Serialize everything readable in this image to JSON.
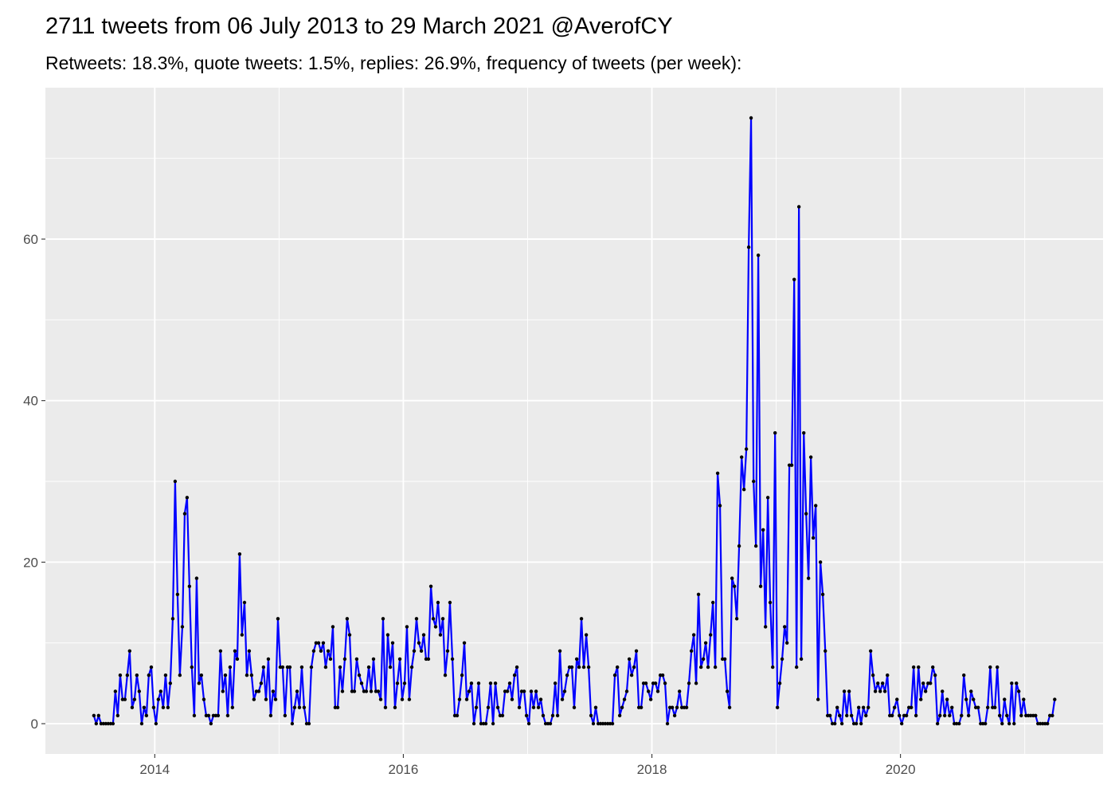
{
  "chart_data": {
    "type": "line",
    "title": "2711 tweets from 06 July 2013 to 29 March 2021 @AverofCY",
    "subtitle": "Retweets: 18.3%, quote tweets: 1.5%, replies: 26.9%, frequency of tweets (per week):",
    "color": "#0000ff",
    "point_color": "#000000",
    "grid": true,
    "xlim": [
      2013.12,
      2021.63
    ],
    "ylim": [
      -3.75,
      78.75
    ],
    "xticks": [
      2014,
      2016,
      2018,
      2020
    ],
    "yticks": [
      0,
      20,
      40,
      60
    ],
    "x": [
      2013.51,
      2013.529,
      2013.548,
      2013.568,
      2013.587,
      2013.606,
      2013.625,
      2013.645,
      2013.664,
      2013.683,
      2013.702,
      2013.722,
      2013.741,
      2013.76,
      2013.779,
      2013.798,
      2013.818,
      2013.837,
      2013.856,
      2013.875,
      2013.895,
      2013.914,
      2013.933,
      2013.952,
      2013.972,
      2013.991,
      2014.01,
      2014.029,
      2014.048,
      2014.068,
      2014.087,
      2014.106,
      2014.125,
      2014.145,
      2014.164,
      2014.183,
      2014.202,
      2014.222,
      2014.241,
      2014.26,
      2014.279,
      2014.298,
      2014.318,
      2014.337,
      2014.356,
      2014.375,
      2014.395,
      2014.414,
      2014.433,
      2014.452,
      2014.472,
      2014.491,
      2014.51,
      2014.529,
      2014.548,
      2014.568,
      2014.587,
      2014.606,
      2014.625,
      2014.645,
      2014.664,
      2014.683,
      2014.702,
      2014.722,
      2014.741,
      2014.76,
      2014.779,
      2014.798,
      2014.818,
      2014.837,
      2014.856,
      2014.875,
      2014.895,
      2014.914,
      2014.933,
      2014.952,
      2014.972,
      2014.991,
      2015.01,
      2015.029,
      2015.048,
      2015.068,
      2015.087,
      2015.106,
      2015.125,
      2015.145,
      2015.164,
      2015.183,
      2015.202,
      2015.222,
      2015.241,
      2015.26,
      2015.279,
      2015.298,
      2015.318,
      2015.337,
      2015.356,
      2015.375,
      2015.395,
      2015.414,
      2015.433,
      2015.452,
      2015.472,
      2015.491,
      2015.51,
      2015.529,
      2015.548,
      2015.568,
      2015.587,
      2015.606,
      2015.625,
      2015.645,
      2015.664,
      2015.683,
      2015.702,
      2015.722,
      2015.741,
      2015.76,
      2015.779,
      2015.798,
      2015.818,
      2015.837,
      2015.856,
      2015.875,
      2015.895,
      2015.914,
      2015.933,
      2015.952,
      2015.972,
      2015.991,
      2016.01,
      2016.029,
      2016.048,
      2016.068,
      2016.087,
      2016.106,
      2016.125,
      2016.145,
      2016.164,
      2016.183,
      2016.202,
      2016.222,
      2016.241,
      2016.26,
      2016.279,
      2016.298,
      2016.318,
      2016.337,
      2016.356,
      2016.375,
      2016.395,
      2016.414,
      2016.433,
      2016.452,
      2016.472,
      2016.491,
      2016.51,
      2016.529,
      2016.548,
      2016.568,
      2016.587,
      2016.606,
      2016.625,
      2016.645,
      2016.664,
      2016.683,
      2016.702,
      2016.722,
      2016.741,
      2016.76,
      2016.779,
      2016.798,
      2016.818,
      2016.837,
      2016.856,
      2016.875,
      2016.895,
      2016.914,
      2016.933,
      2016.952,
      2016.972,
      2016.991,
      2017.01,
      2017.029,
      2017.048,
      2017.068,
      2017.087,
      2017.106,
      2017.125,
      2017.145,
      2017.164,
      2017.183,
      2017.202,
      2017.222,
      2017.241,
      2017.26,
      2017.279,
      2017.298,
      2017.318,
      2017.337,
      2017.356,
      2017.375,
      2017.395,
      2017.414,
      2017.433,
      2017.452,
      2017.472,
      2017.491,
      2017.51,
      2017.529,
      2017.548,
      2017.568,
      2017.587,
      2017.606,
      2017.625,
      2017.645,
      2017.664,
      2017.683,
      2017.702,
      2017.722,
      2017.741,
      2017.76,
      2017.779,
      2017.798,
      2017.818,
      2017.837,
      2017.856,
      2017.875,
      2017.895,
      2017.914,
      2017.933,
      2017.952,
      2017.972,
      2017.991,
      2018.01,
      2018.029,
      2018.048,
      2018.068,
      2018.087,
      2018.106,
      2018.125,
      2018.145,
      2018.164,
      2018.183,
      2018.202,
      2018.222,
      2018.241,
      2018.26,
      2018.279,
      2018.298,
      2018.318,
      2018.337,
      2018.356,
      2018.375,
      2018.395,
      2018.414,
      2018.433,
      2018.452,
      2018.472,
      2018.491,
      2018.51,
      2018.529,
      2018.548,
      2018.568,
      2018.587,
      2018.606,
      2018.625,
      2018.645,
      2018.664,
      2018.683,
      2018.702,
      2018.722,
      2018.741,
      2018.76,
      2018.779,
      2018.798,
      2018.818,
      2018.837,
      2018.856,
      2018.875,
      2018.895,
      2018.914,
      2018.933,
      2018.952,
      2018.972,
      2018.991,
      2019.01,
      2019.029,
      2019.048,
      2019.068,
      2019.087,
      2019.106,
      2019.125,
      2019.145,
      2019.164,
      2019.183,
      2019.202,
      2019.222,
      2019.241,
      2019.26,
      2019.279,
      2019.298,
      2019.318,
      2019.337,
      2019.356,
      2019.375,
      2019.395,
      2019.414,
      2019.433,
      2019.452,
      2019.472,
      2019.491,
      2019.51,
      2019.529,
      2019.548,
      2019.568,
      2019.587,
      2019.606,
      2019.625,
      2019.645,
      2019.664,
      2019.683,
      2019.702,
      2019.722,
      2019.741,
      2019.76,
      2019.779,
      2019.798,
      2019.818,
      2019.837,
      2019.856,
      2019.875,
      2019.895,
      2019.914,
      2019.933,
      2019.952,
      2019.972,
      2019.991,
      2020.01,
      2020.029,
      2020.048,
      2020.068,
      2020.087,
      2020.106,
      2020.125,
      2020.145,
      2020.164,
      2020.183,
      2020.202,
      2020.222,
      2020.241,
      2020.26,
      2020.279,
      2020.298,
      2020.318,
      2020.337,
      2020.356,
      2020.375,
      2020.395,
      2020.414,
      2020.433,
      2020.452,
      2020.472,
      2020.491,
      2020.51,
      2020.529,
      2020.548,
      2020.568,
      2020.587,
      2020.606,
      2020.625,
      2020.645,
      2020.664,
      2020.683,
      2020.702,
      2020.722,
      2020.741,
      2020.76,
      2020.779,
      2020.798,
      2020.818,
      2020.837,
      2020.856,
      2020.875,
      2020.895,
      2020.914,
      2020.933,
      2020.952,
      2020.972,
      2020.991,
      2021.01,
      2021.029,
      2021.048,
      2021.068,
      2021.087,
      2021.106,
      2021.125,
      2021.145,
      2021.164,
      2021.183,
      2021.202,
      2021.222,
      2021.241
    ],
    "values": [
      1,
      0,
      1,
      0,
      0,
      0,
      0,
      0,
      0,
      4,
      1,
      6,
      3,
      3,
      6,
      9,
      2,
      3,
      6,
      4,
      0,
      2,
      1,
      6,
      7,
      2,
      0,
      3,
      4,
      2,
      6,
      2,
      5,
      13,
      30,
      16,
      6,
      12,
      26,
      28,
      17,
      7,
      1,
      18,
      5,
      6,
      3,
      1,
      1,
      0,
      1,
      1,
      1,
      9,
      4,
      6,
      1,
      7,
      2,
      9,
      8,
      21,
      11,
      15,
      6,
      9,
      6,
      3,
      4,
      4,
      5,
      7,
      3,
      8,
      1,
      4,
      3,
      13,
      7,
      7,
      1,
      7,
      7,
      0,
      2,
      4,
      2,
      7,
      2,
      0,
      0,
      7,
      9,
      10,
      10,
      9,
      10,
      7,
      9,
      8,
      12,
      2,
      2,
      7,
      4,
      8,
      13,
      11,
      4,
      4,
      8,
      6,
      5,
      4,
      4,
      7,
      4,
      8,
      4,
      4,
      3,
      13,
      2,
      11,
      7,
      10,
      2,
      5,
      8,
      3,
      5,
      12,
      3,
      7,
      9,
      13,
      10,
      9,
      11,
      8,
      8,
      17,
      13,
      12,
      15,
      11,
      13,
      6,
      9,
      15,
      8,
      1,
      1,
      3,
      6,
      10,
      3,
      4,
      5,
      0,
      2,
      5,
      0,
      0,
      0,
      2,
      5,
      0,
      5,
      2,
      1,
      1,
      4,
      4,
      5,
      3,
      6,
      7,
      2,
      4,
      4,
      1,
      0,
      4,
      2,
      4,
      2,
      3,
      1,
      0,
      0,
      0,
      1,
      5,
      1,
      9,
      3,
      4,
      6,
      7,
      7,
      2,
      8,
      7,
      13,
      7,
      11,
      7,
      1,
      0,
      2,
      0,
      0,
      0,
      0,
      0,
      0,
      0,
      6,
      7,
      1,
      2,
      3,
      4,
      8,
      6,
      7,
      9,
      2,
      2,
      5,
      5,
      4,
      3,
      5,
      5,
      4,
      6,
      6,
      5,
      0,
      2,
      2,
      1,
      2,
      4,
      2,
      2,
      2,
      5,
      9,
      11,
      5,
      16,
      7,
      8,
      10,
      7,
      11,
      15,
      7,
      31,
      27,
      8,
      8,
      4,
      2,
      18,
      17,
      13,
      22,
      33,
      29,
      34,
      59,
      75,
      30,
      22,
      58,
      17,
      24,
      12,
      28,
      15,
      7,
      36,
      2,
      5,
      8,
      12,
      10,
      32,
      32,
      55,
      7,
      64,
      8,
      36,
      26,
      18,
      33,
      23,
      27,
      3,
      20,
      16,
      9,
      1,
      1,
      0,
      0,
      2,
      1,
      0,
      4,
      1,
      4,
      1,
      0,
      0,
      2,
      0,
      2,
      1,
      2,
      9,
      6,
      4,
      5,
      4,
      5,
      4,
      6,
      1,
      1,
      2,
      3,
      1,
      0,
      1,
      1,
      2,
      2,
      7,
      1,
      7,
      3,
      5,
      4,
      5,
      5,
      7,
      6,
      0,
      1,
      4,
      1,
      3,
      1,
      2,
      0,
      0,
      0,
      1,
      6,
      3,
      1,
      4,
      3,
      2,
      2,
      0,
      0,
      0,
      2,
      7,
      2,
      2,
      7,
      1,
      0,
      3,
      1,
      0,
      5,
      0,
      5,
      4,
      1,
      3,
      1,
      1,
      1,
      1,
      1,
      0,
      0,
      0,
      0,
      0,
      1,
      1,
      3
    ]
  }
}
